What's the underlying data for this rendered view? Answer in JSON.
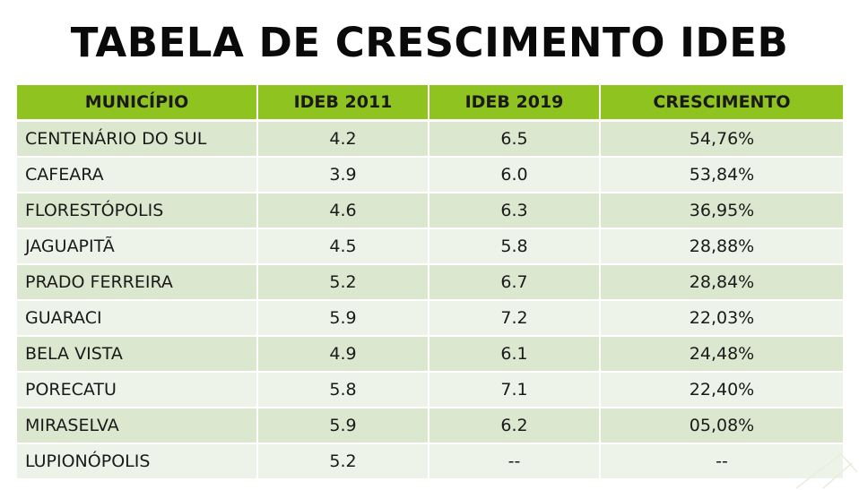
{
  "title": "TABELA DE CRESCIMENTO IDEB",
  "table": {
    "headers": [
      "MUNICÍPIO",
      "IDEB 2011",
      "IDEB 2019",
      "CRESCIMENTO"
    ],
    "rows": [
      [
        "CENTENÁRIO DO SUL",
        "4.2",
        "6.5",
        "54,76%"
      ],
      [
        "CAFEARA",
        "3.9",
        "6.0",
        "53,84%"
      ],
      [
        "FLORESTÓPOLIS",
        "4.6",
        "6.3",
        "36,95%"
      ],
      [
        "JAGUAPITÃ",
        "4.5",
        "5.8",
        "28,88%"
      ],
      [
        "PRADO FERREIRA",
        "5.2",
        "6.7",
        "28,84%"
      ],
      [
        "GUARACI",
        "5.9",
        "7.2",
        "22,03%"
      ],
      [
        "BELA VISTA",
        "4.9",
        "6.1",
        "24,48%"
      ],
      [
        "PORECATU",
        "5.8",
        "7.1",
        "22,40%"
      ],
      [
        "MIRASELVA",
        "5.9",
        "6.2",
        "05,08%"
      ],
      [
        "LUPIONÓPOLIS",
        "5.2",
        "--",
        "--"
      ]
    ]
  },
  "colors": {
    "header_bg": "#8fc31f",
    "row_dark": "#dbe8cf",
    "row_light": "#edf3e8"
  }
}
